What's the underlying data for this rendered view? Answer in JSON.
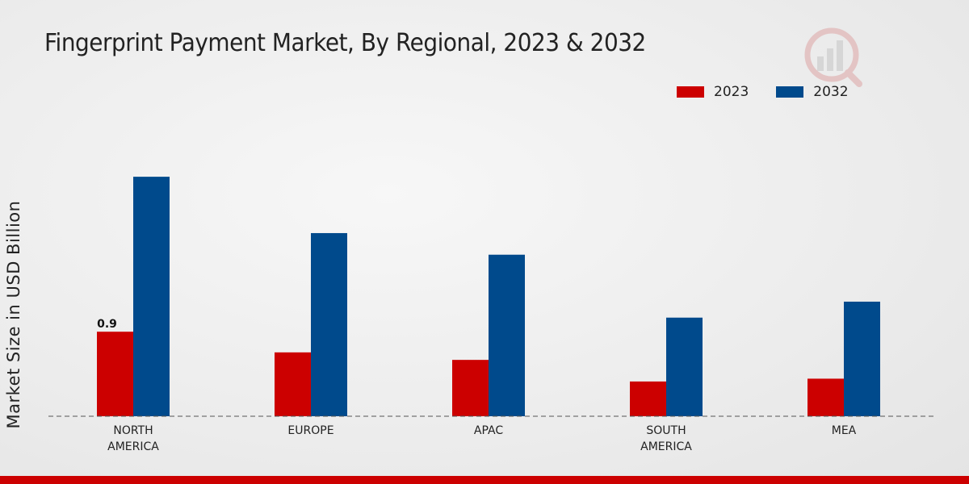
{
  "colors": {
    "series_2023": "#cc0000",
    "series_2032": "#004a8c",
    "footer": "#cc0000"
  },
  "logo": {
    "icon": "market-research-logo-icon"
  },
  "chart_data": {
    "type": "bar",
    "title": "Fingerprint Payment Market, By Regional, 2023 & 2032",
    "xlabel": "",
    "ylabel": "Market Size in USD Billion",
    "ylim": [
      0,
      2.5
    ],
    "grid": false,
    "legend_position": "top-right",
    "categories": [
      [
        "NORTH",
        "AMERICA"
      ],
      [
        "EUROPE"
      ],
      [
        "APAC"
      ],
      [
        "SOUTH",
        "AMERICA"
      ],
      [
        "MEA"
      ]
    ],
    "series": [
      {
        "name": "2023",
        "values": [
          0.9,
          0.68,
          0.6,
          0.37,
          0.4
        ],
        "data_labels": [
          "0.9",
          "",
          "",
          "",
          ""
        ]
      },
      {
        "name": "2032",
        "values": [
          2.55,
          1.95,
          1.72,
          1.05,
          1.22
        ]
      }
    ]
  }
}
